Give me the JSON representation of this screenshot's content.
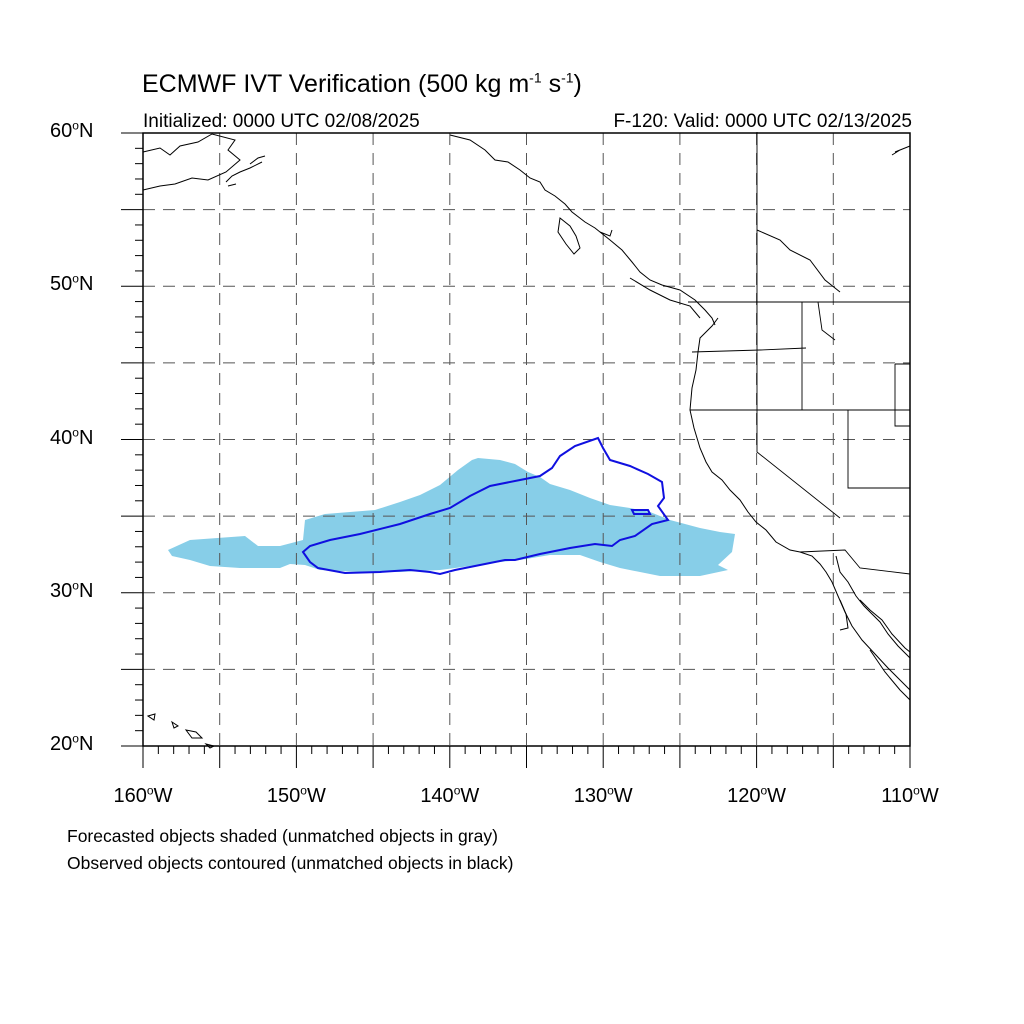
{
  "header": {
    "title_main": "ECMWF IVT Verification (500 kg m",
    "title_exp1": "-1",
    "title_mid": "s",
    "title_exp2": "-1",
    "title_end": ")",
    "initialized": "Initialized: 0000 UTC 02/08/2025",
    "valid": "F-120: Valid: 0000 UTC 02/13/2025"
  },
  "axes": {
    "lat_labels": [
      {
        "text": "60",
        "deg": "o",
        "suffix": "N"
      },
      {
        "text": "50",
        "deg": "o",
        "suffix": "N"
      },
      {
        "text": "40",
        "deg": "o",
        "suffix": "N"
      },
      {
        "text": "30",
        "deg": "o",
        "suffix": "N"
      },
      {
        "text": "20",
        "deg": "o",
        "suffix": "N"
      }
    ],
    "lon_labels": [
      {
        "text": "160",
        "deg": "o",
        "suffix": "W"
      },
      {
        "text": "150",
        "deg": "o",
        "suffix": "W"
      },
      {
        "text": "140",
        "deg": "o",
        "suffix": "W"
      },
      {
        "text": "130",
        "deg": "o",
        "suffix": "W"
      },
      {
        "text": "120",
        "deg": "o",
        "suffix": "W"
      },
      {
        "text": "110",
        "deg": "o",
        "suffix": "W"
      }
    ]
  },
  "notes": {
    "line1": "Forecasted objects shaded (unmatched objects in gray)",
    "line2": "Observed objects contoured (unmatched objects in black)"
  },
  "colors": {
    "forecast_fill": "#87CEE8",
    "observed_contour": "#1010E0",
    "coastline": "#000000",
    "grid": "#555555"
  },
  "map": {
    "lon_range": [
      -160,
      -110
    ],
    "lat_range": [
      20,
      60
    ],
    "grid_step_deg": 5
  }
}
